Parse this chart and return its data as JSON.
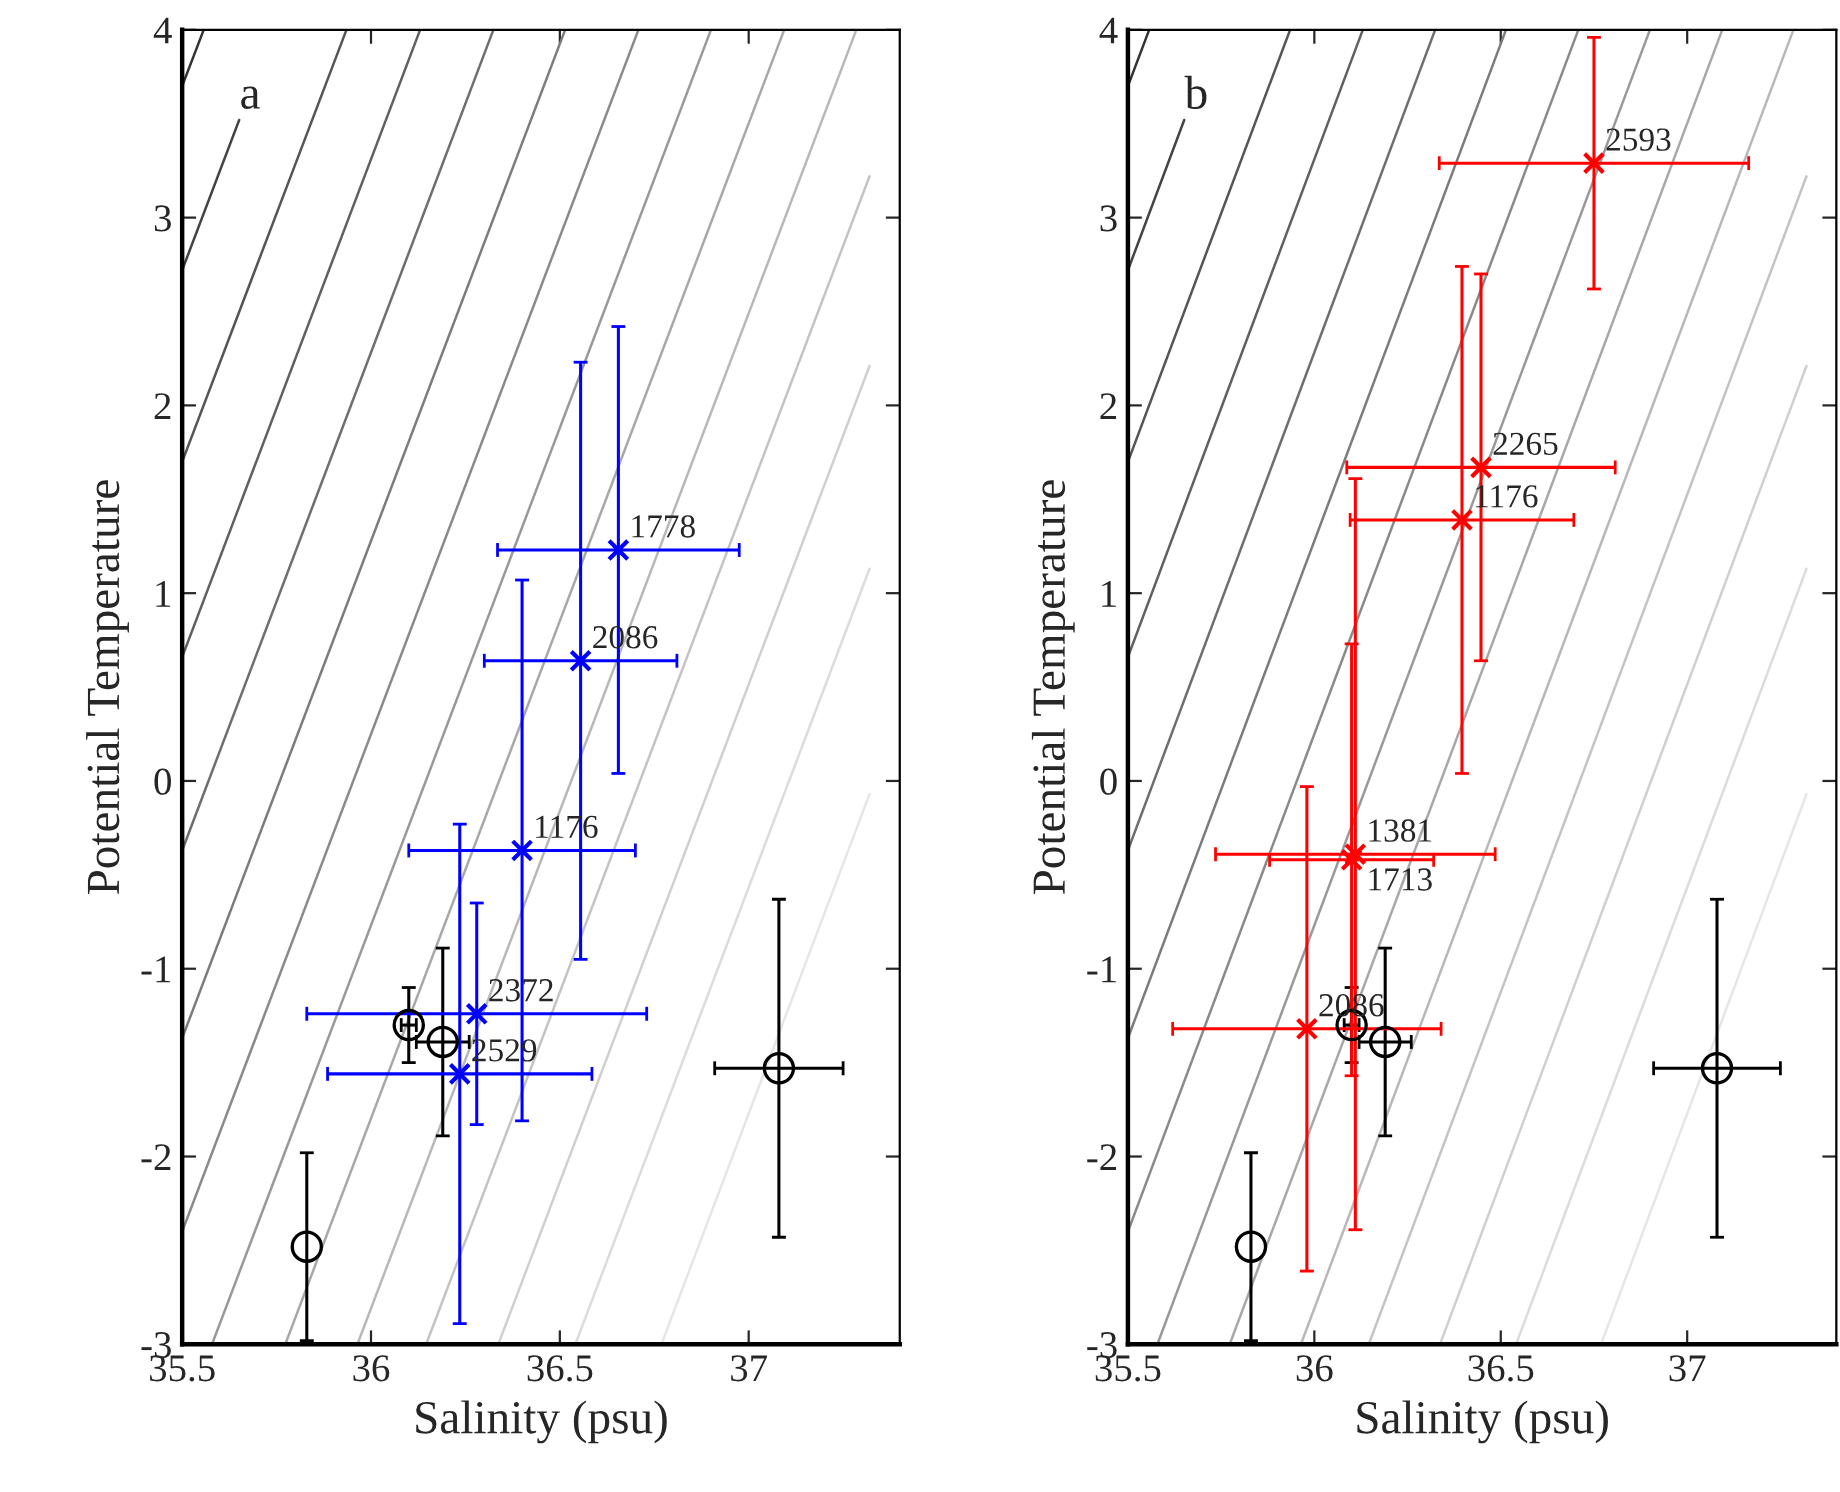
{
  "chart_data": [
    {
      "type": "scatter",
      "xlabel": "Salinity (psu)",
      "ylabel": "Potential Temperature",
      "xlim": [
        35.5,
        37.4
      ],
      "ylim": [
        -3,
        4
      ],
      "xticks": [
        35.5,
        36,
        36.5,
        37
      ],
      "yticks": [
        -3,
        -2,
        -1,
        0,
        1,
        2,
        3,
        4
      ],
      "grid": false,
      "legend": false,
      "annotations": [
        "a",
        {
          "text": "1778",
          "x": 36.655,
          "y": 1.23
        },
        {
          "text": "2086",
          "x": 36.555,
          "y": 0.64
        },
        {
          "text": "1176",
          "x": 36.4,
          "y": -0.37
        },
        {
          "text": "2372",
          "x": 36.28,
          "y": -1.24
        },
        {
          "text": "2529",
          "x": 36.235,
          "y": -1.56
        }
      ],
      "series": [
        {
          "type": "line",
          "color": "#333333",
          "x": [
            35.5,
            35.557
          ],
          "values": [
            3.7,
            4
          ]
        },
        {
          "type": "line",
          "color": "#444444",
          "x": [
            35.5,
            35.651
          ],
          "values": [
            2.72,
            3.52
          ]
        },
        {
          "type": "line",
          "color": "#555555",
          "x": [
            35.5,
            35.935
          ],
          "values": [
            1.7,
            4
          ]
        },
        {
          "type": "line",
          "color": "#606060",
          "x": [
            35.5,
            36.13
          ],
          "values": [
            0.66,
            4
          ]
        },
        {
          "type": "line",
          "color": "#6e6e6e",
          "x": [
            35.5,
            36.324
          ],
          "values": [
            -0.37,
            4
          ]
        },
        {
          "type": "line",
          "color": "#7c7c7c",
          "x": [
            35.5,
            36.514
          ],
          "values": [
            -1.37,
            4
          ]
        },
        {
          "type": "line",
          "color": "#8a8a8a",
          "x": [
            35.5,
            36.708
          ],
          "values": [
            -2.4,
            4
          ]
        },
        {
          "type": "line",
          "color": "#999999",
          "x": [
            35.579,
            36.9
          ],
          "values": [
            -3,
            4
          ]
        },
        {
          "type": "line",
          "color": "#a8a8a8",
          "x": [
            35.773,
            37.094
          ],
          "values": [
            -3,
            4
          ]
        },
        {
          "type": "line",
          "color": "#b8b8b8",
          "x": [
            35.964,
            37.285
          ],
          "values": [
            -3,
            4
          ]
        },
        {
          "type": "line",
          "color": "#c4c4c4",
          "x": [
            36.146,
            37.32
          ],
          "values": [
            -3,
            3.22
          ]
        },
        {
          "type": "line",
          "color": "#d0d0d0",
          "x": [
            36.337,
            37.32
          ],
          "values": [
            -3,
            2.21
          ]
        },
        {
          "type": "line",
          "color": "#dcdcdc",
          "x": [
            36.541,
            37.32
          ],
          "values": [
            -3,
            1.13
          ]
        },
        {
          "type": "line",
          "color": "#e6e6e6",
          "x": [
            36.769,
            37.32
          ],
          "values": [
            -3,
            -0.07
          ]
        },
        {
          "type": "scatter",
          "marker": "circle",
          "color": "#000000",
          "x": [
            36.1,
            36.19,
            35.83,
            37.08
          ],
          "values": [
            -1.3,
            -1.39,
            -2.48,
            -1.53
          ],
          "errors": [
            0.2,
            0.5,
            0.5,
            0.9
          ],
          "xerrors": [
            0.02,
            0.07,
            null,
            0.17
          ]
        },
        {
          "type": "scatter",
          "marker": "cross",
          "color": "#0000ff",
          "x": [
            36.655,
            36.555,
            36.4,
            36.28,
            36.235
          ],
          "values": [
            1.23,
            0.64,
            -0.37,
            -1.24,
            -1.56
          ],
          "errors": [
            1.19,
            1.59,
            1.44,
            0.59,
            1.33
          ],
          "xerrors": [
            0.32,
            0.255,
            0.3,
            0.45,
            0.35
          ]
        }
      ]
    },
    {
      "type": "scatter",
      "xlabel": "Salinity (psu)",
      "ylabel": "Potential Temperature",
      "xlim": [
        35.5,
        37.4
      ],
      "ylim": [
        -3,
        4
      ],
      "xticks": [
        35.5,
        36,
        36.5,
        37
      ],
      "yticks": [
        -3,
        -2,
        -1,
        0,
        1,
        2,
        3,
        4
      ],
      "grid": false,
      "legend": false,
      "annotations": [
        "b",
        {
          "text": "2593",
          "x": 36.75,
          "y": 3.29
        },
        {
          "text": "2265",
          "x": 36.447,
          "y": 1.67
        },
        {
          "text": "1176",
          "x": 36.396,
          "y": 1.39
        },
        {
          "text": "1381",
          "x": 36.11,
          "y": -0.39
        },
        {
          "text": "1713",
          "x": 36.11,
          "y": -0.65
        },
        {
          "text": "2086",
          "x": 35.98,
          "y": -1.32
        }
      ],
      "series": [
        {
          "type": "line",
          "color": "#333333",
          "x": [
            35.5,
            35.557
          ],
          "values": [
            3.7,
            4
          ]
        },
        {
          "type": "line",
          "color": "#444444",
          "x": [
            35.5,
            35.651
          ],
          "values": [
            2.72,
            3.52
          ]
        },
        {
          "type": "line",
          "color": "#555555",
          "x": [
            35.5,
            35.935
          ],
          "values": [
            1.7,
            4
          ]
        },
        {
          "type": "line",
          "color": "#606060",
          "x": [
            35.5,
            36.13
          ],
          "values": [
            0.66,
            4
          ]
        },
        {
          "type": "line",
          "color": "#6e6e6e",
          "x": [
            35.5,
            36.324
          ],
          "values": [
            -0.37,
            4
          ]
        },
        {
          "type": "line",
          "color": "#7c7c7c",
          "x": [
            35.5,
            36.514
          ],
          "values": [
            -1.37,
            4
          ]
        },
        {
          "type": "line",
          "color": "#8a8a8a",
          "x": [
            35.5,
            36.708
          ],
          "values": [
            -2.4,
            4
          ]
        },
        {
          "type": "line",
          "color": "#999999",
          "x": [
            35.579,
            36.9
          ],
          "values": [
            -3,
            4
          ]
        },
        {
          "type": "line",
          "color": "#a8a8a8",
          "x": [
            35.773,
            37.094
          ],
          "values": [
            -3,
            4
          ]
        },
        {
          "type": "line",
          "color": "#b8b8b8",
          "x": [
            35.964,
            37.285
          ],
          "values": [
            -3,
            4
          ]
        },
        {
          "type": "line",
          "color": "#c4c4c4",
          "x": [
            36.146,
            37.32
          ],
          "values": [
            -3,
            3.22
          ]
        },
        {
          "type": "line",
          "color": "#d0d0d0",
          "x": [
            36.337,
            37.32
          ],
          "values": [
            -3,
            2.21
          ]
        },
        {
          "type": "line",
          "color": "#dcdcdc",
          "x": [
            36.541,
            37.32
          ],
          "values": [
            -3,
            1.13
          ]
        },
        {
          "type": "line",
          "color": "#e6e6e6",
          "x": [
            36.769,
            37.32
          ],
          "values": [
            -3,
            -0.07
          ]
        },
        {
          "type": "scatter",
          "marker": "circle",
          "color": "#000000",
          "x": [
            36.1,
            36.19,
            35.83,
            37.08
          ],
          "values": [
            -1.3,
            -1.39,
            -2.48,
            -1.53
          ],
          "errors": [
            0.2,
            0.5,
            0.5,
            0.9
          ],
          "xerrors": [
            0.02,
            0.07,
            null,
            0.17
          ]
        },
        {
          "type": "scatter",
          "marker": "cross",
          "color": "#ff0000",
          "x": [
            36.75,
            36.447,
            36.396,
            36.11,
            36.1,
            35.98
          ],
          "values": [
            3.29,
            1.67,
            1.39,
            -0.39,
            -0.42,
            -1.32
          ],
          "errors": [
            0.67,
            1.03,
            1.35,
            2.0,
            1.15,
            1.29
          ],
          "xerrors": [
            0.415,
            0.36,
            0.3,
            0.375,
            0.22,
            0.36
          ]
        }
      ]
    }
  ]
}
